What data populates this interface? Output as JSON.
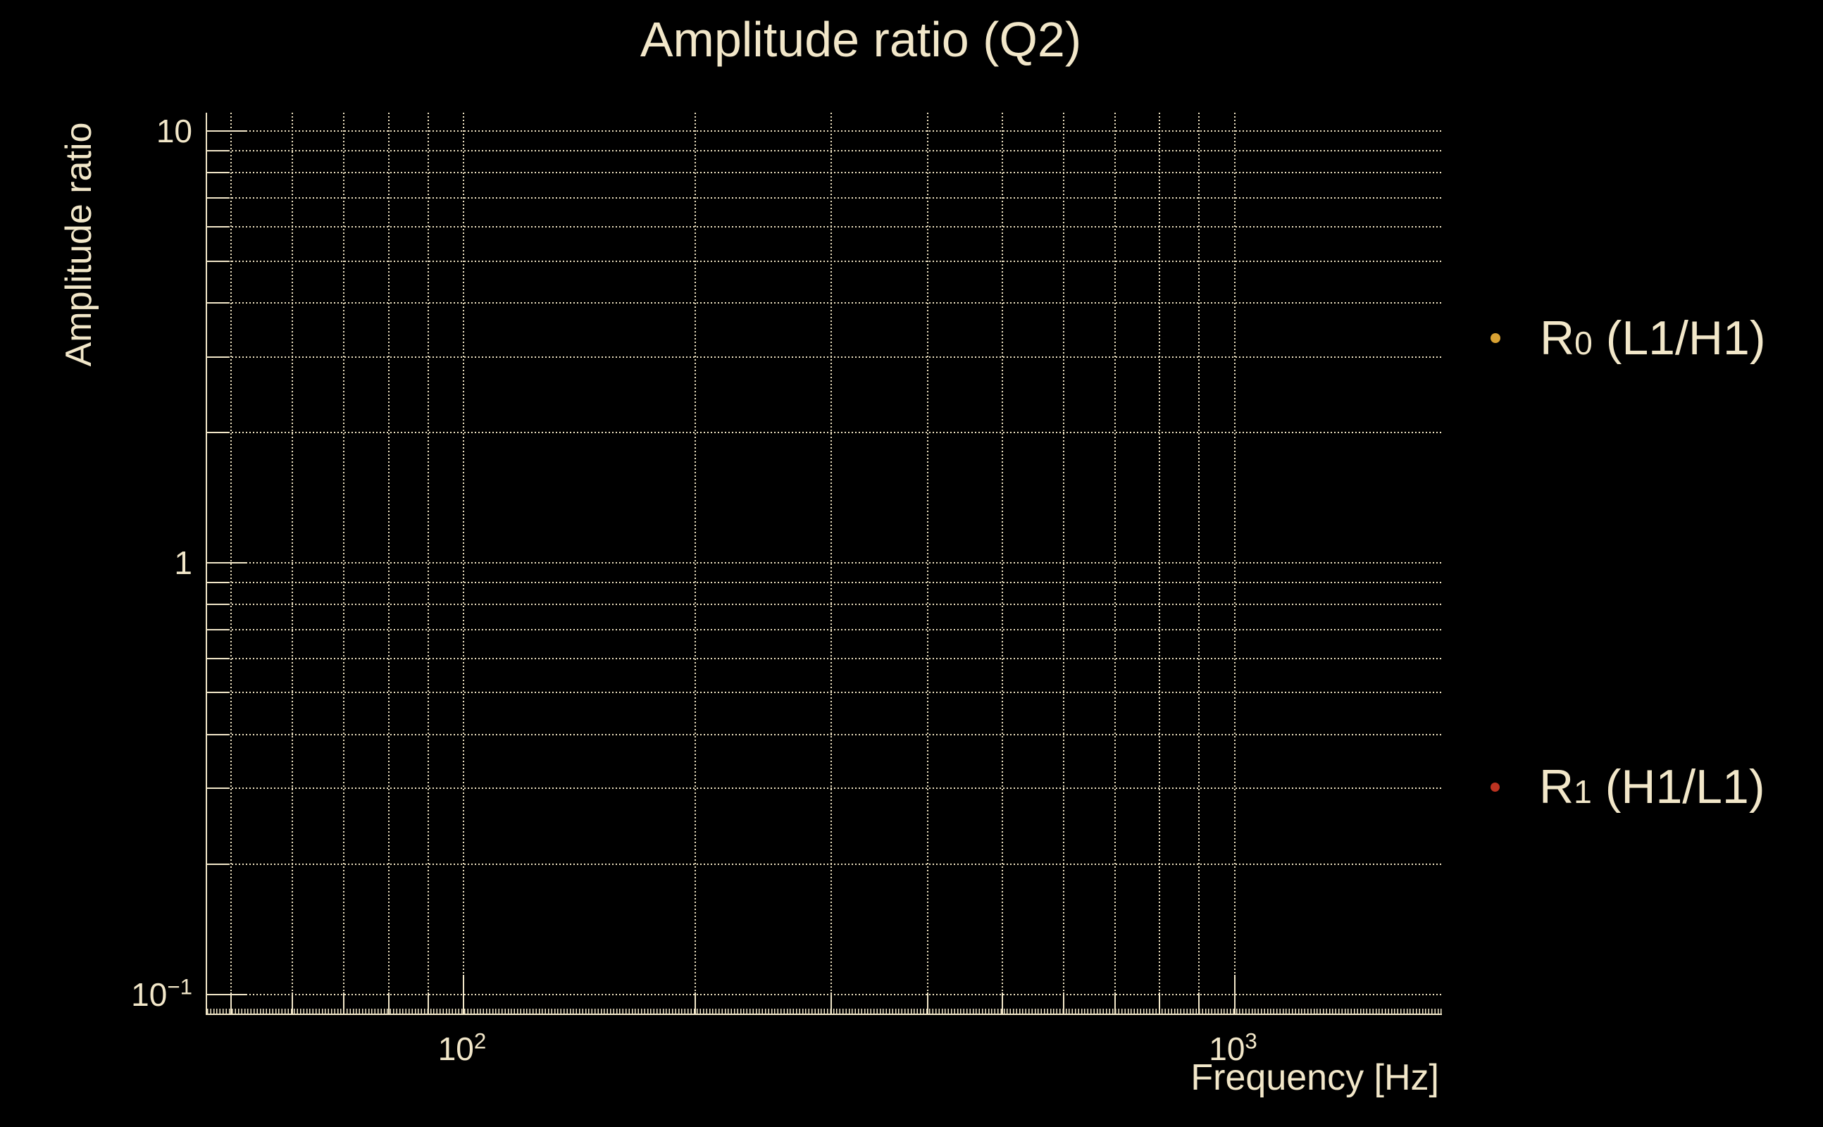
{
  "figure": {
    "background_color": "#000000",
    "foreground_color": "#f2e7c9"
  },
  "chart_data": {
    "type": "scatter",
    "title": "Amplitude ratio (Q2)",
    "xlabel": "Frequency [Hz]",
    "ylabel": "Amplitude ratio",
    "grid": "dotted, major and minor, both axes",
    "legend_position": "outside-right",
    "x_axis": {
      "scale": "log",
      "range": [
        46.5,
        1858
      ],
      "major_ticks": [
        {
          "value": 100,
          "base": "10",
          "exp": "2"
        },
        {
          "value": 1000,
          "base": "10",
          "exp": "3"
        }
      ],
      "minor_gridlines": [
        50,
        60,
        70,
        80,
        90,
        200,
        300,
        400,
        500,
        600,
        700,
        800,
        900
      ]
    },
    "y_axis": {
      "scale": "log",
      "range": [
        0.0903,
        11.03
      ],
      "major_ticks": [
        {
          "value": 10,
          "base": "10",
          "exp": ""
        },
        {
          "value": 1,
          "base": "1",
          "exp": ""
        },
        {
          "value": 0.1,
          "base": "10",
          "exp": "−1"
        }
      ],
      "minor_gridlines": [
        9,
        8,
        7,
        6,
        5,
        4,
        3,
        2,
        0.9,
        0.8,
        0.7,
        0.6,
        0.5,
        0.4,
        0.3,
        0.2
      ]
    },
    "series": [
      {
        "name": "R0 (L1/H1)",
        "label_base": "R",
        "label_sub": "0",
        "label_rest": " (L1/H1)",
        "marker": "dot",
        "color": "#d9a233",
        "points": []
      },
      {
        "name": "R1 (H1/L1)",
        "label_base": "R",
        "label_sub": "1",
        "label_rest": " (H1/L1)",
        "marker": "dot",
        "color": "#bd3321",
        "points": []
      }
    ]
  }
}
